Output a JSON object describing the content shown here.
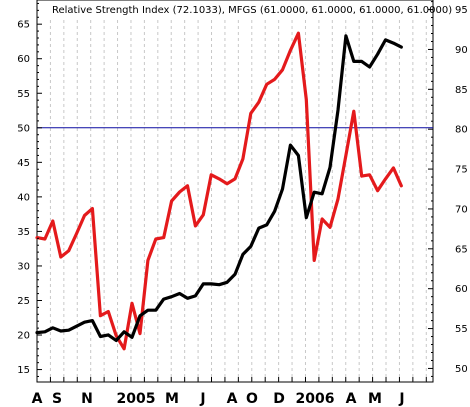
{
  "chart_data": {
    "type": "line",
    "title": "Relative Strength Index (72.1033), MFGS (61.0000, 61.0000, 61.0000, 61.0000)",
    "x_labels": [
      "A",
      "S",
      "N",
      "2005",
      "M",
      "J",
      "A",
      "O",
      "D",
      "2006",
      "A",
      "M",
      "J"
    ],
    "left_axis": {
      "ticks": [
        15,
        20,
        25,
        30,
        35,
        40,
        45,
        50,
        55,
        60,
        65
      ],
      "ylim": [
        13.2,
        68.5
      ]
    },
    "right_axis": {
      "ticks": [
        50,
        55,
        60,
        65,
        70,
        75,
        80,
        85,
        90,
        95
      ],
      "ylim": [
        48.3,
        96.2
      ]
    },
    "reference_line": {
      "value": 50,
      "axis": "left"
    },
    "series": [
      {
        "color": "#e41a1c",
        "axis": "left",
        "values": [
          34.1,
          33.9,
          36.5,
          31.3,
          32.2,
          34.7,
          37.3,
          38.3,
          22.8,
          23.4,
          19.9,
          18.0,
          24.6,
          20.2,
          30.8,
          33.9,
          34.1,
          39.4,
          40.7,
          41.6,
          35.8,
          37.4,
          43.2,
          42.6,
          41.9,
          42.6,
          45.5,
          52.1,
          53.7,
          56.3,
          57.0,
          58.4,
          61.2,
          63.7,
          54.1,
          30.8,
          36.8,
          35.6,
          39.7,
          46.0,
          52.4,
          43.0,
          43.2,
          40.9,
          42.6,
          44.2,
          41.6
        ]
      },
      {
        "color": "#000000",
        "axis": "right",
        "values": [
          54.5,
          54.6,
          55.1,
          54.7,
          54.8,
          55.3,
          55.8,
          56.0,
          54.0,
          54.2,
          53.5,
          54.6,
          53.9,
          56.6,
          57.3,
          57.3,
          58.7,
          59.0,
          59.4,
          58.8,
          59.1,
          60.6,
          60.6,
          60.5,
          60.8,
          61.8,
          64.3,
          65.3,
          67.6,
          68.0,
          69.7,
          72.5,
          78.0,
          76.7,
          68.9,
          72.1,
          71.9,
          75.2,
          82.4,
          91.7,
          88.5,
          88.5,
          87.8,
          89.4,
          91.2,
          90.8,
          90.3
        ]
      }
    ],
    "grid": true,
    "xlim": [
      0,
      50
    ]
  }
}
